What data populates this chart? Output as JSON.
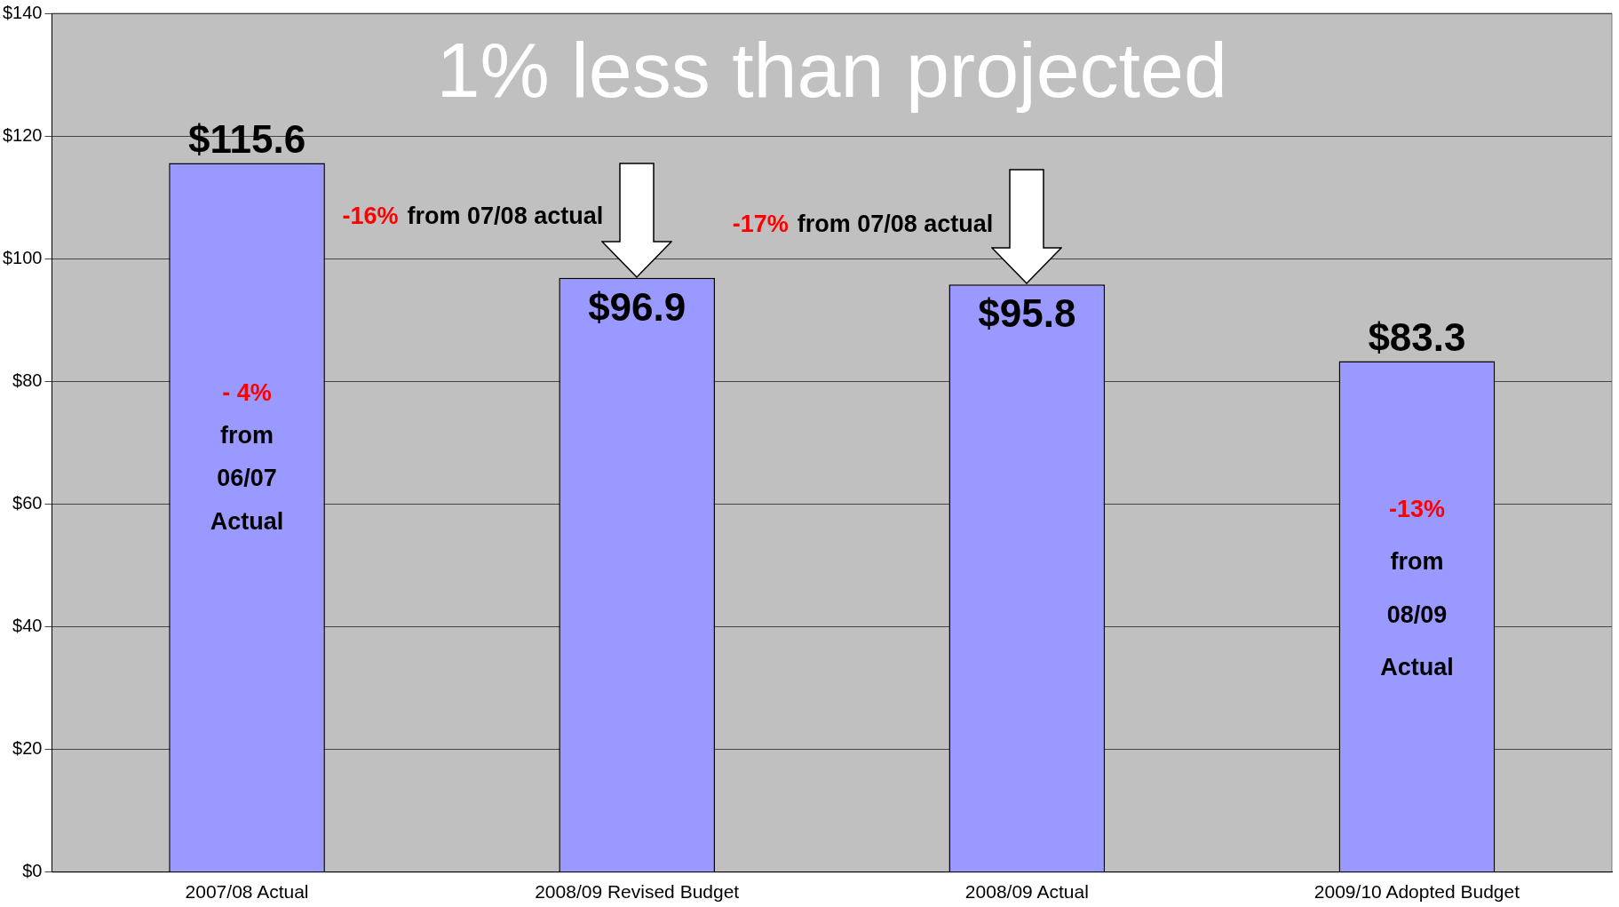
{
  "chart_data": {
    "type": "bar",
    "title": "1% less than projected",
    "categories": [
      "2007/08 Actual",
      "2008/09 Revised Budget",
      "2008/09 Actual",
      "2009/10 Adopted Budget"
    ],
    "values": [
      115.6,
      96.9,
      95.8,
      83.3
    ],
    "color": "#9999ff",
    "value_labels": [
      "$115.6",
      "$96.9",
      "$95.8",
      "$83.3"
    ],
    "ylim": [
      0,
      140
    ],
    "yticks": [
      {
        "value": 0,
        "label": "$0"
      },
      {
        "value": 20,
        "label": "$20"
      },
      {
        "value": 40,
        "label": "$40"
      },
      {
        "value": 60,
        "label": "$60"
      },
      {
        "value": 80,
        "label": "$80"
      },
      {
        "value": 100,
        "label": "$100"
      },
      {
        "value": 120,
        "label": "$120"
      },
      {
        "value": 140,
        "label": "$140"
      }
    ],
    "grid": "y",
    "legend": false,
    "annotations": [
      "- 4%",
      "from",
      "06/07",
      "Actual",
      "-16%",
      "from 07/08 actual",
      "-17%",
      "from 07/08 actual",
      "-13%",
      "from",
      "08/09",
      "Actual"
    ]
  }
}
